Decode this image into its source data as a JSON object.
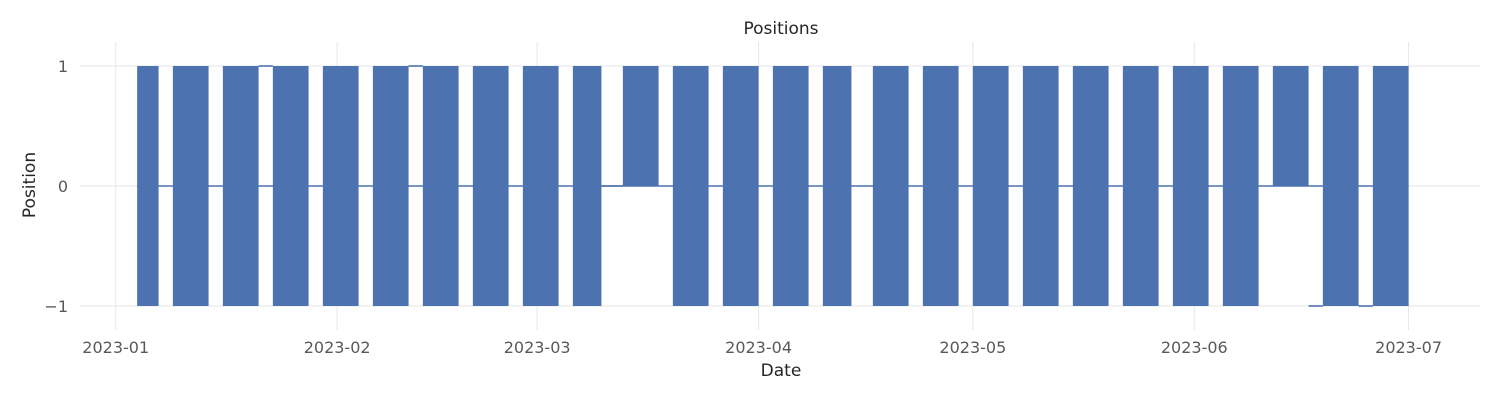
{
  "chart_data": {
    "type": "line",
    "title": "Positions",
    "xlabel": "Date",
    "ylabel": "Position",
    "grid": true,
    "legend": "none",
    "colors": {
      "series": "#4c72b0",
      "grid": "#e6e6e6",
      "text": "#262626",
      "tick": "#595959"
    },
    "xlim": [
      "2022-12-27",
      "2023-07-11"
    ],
    "ylim": [
      -1.2,
      1.2
    ],
    "x_ticks": [
      {
        "value": "2023-01-01",
        "label": "2023-01"
      },
      {
        "value": "2023-02-01",
        "label": "2023-02"
      },
      {
        "value": "2023-03-01",
        "label": "2023-03"
      },
      {
        "value": "2023-04-01",
        "label": "2023-04"
      },
      {
        "value": "2023-05-01",
        "label": "2023-05"
      },
      {
        "value": "2023-06-01",
        "label": "2023-06"
      },
      {
        "value": "2023-07-01",
        "label": "2023-07"
      }
    ],
    "y_ticks": [
      {
        "value": 1,
        "label": "1"
      },
      {
        "value": 0,
        "label": "0"
      },
      {
        "value": -1,
        "label": "−1"
      }
    ],
    "series": [
      {
        "oscillation_periods": [
          {
            "start": "2023-01-04",
            "end": "2023-01-07",
            "low": -1,
            "high": 1
          },
          {
            "start": "2023-01-09",
            "end": "2023-01-14",
            "low": -1,
            "high": 1
          },
          {
            "start": "2023-01-16",
            "end": "2023-01-21",
            "low": -1,
            "high": 1
          },
          {
            "start": "2023-01-23",
            "end": "2023-01-28",
            "low": -1,
            "high": 1
          },
          {
            "start": "2023-01-30",
            "end": "2023-02-04",
            "low": -1,
            "high": 1
          },
          {
            "start": "2023-02-06",
            "end": "2023-02-11",
            "low": -1,
            "high": 1
          },
          {
            "start": "2023-02-13",
            "end": "2023-02-18",
            "low": -1,
            "high": 1
          },
          {
            "start": "2023-02-20",
            "end": "2023-02-25",
            "low": -1,
            "high": 1
          },
          {
            "start": "2023-02-27",
            "end": "2023-03-04",
            "low": -1,
            "high": 1
          },
          {
            "start": "2023-03-06",
            "end": "2023-03-10",
            "low": -1,
            "high": 1
          },
          {
            "start": "2023-03-13",
            "end": "2023-03-18",
            "low": 0,
            "high": 1
          },
          {
            "start": "2023-03-20",
            "end": "2023-03-25",
            "low": -1,
            "high": 1
          },
          {
            "start": "2023-03-27",
            "end": "2023-04-01",
            "low": -1,
            "high": 1
          },
          {
            "start": "2023-04-03",
            "end": "2023-04-08",
            "low": -1,
            "high": 1
          },
          {
            "start": "2023-04-10",
            "end": "2023-04-14",
            "low": -1,
            "high": 1
          },
          {
            "start": "2023-04-17",
            "end": "2023-04-22",
            "low": -1,
            "high": 1
          },
          {
            "start": "2023-04-24",
            "end": "2023-04-29",
            "low": -1,
            "high": 1
          },
          {
            "start": "2023-05-01",
            "end": "2023-05-06",
            "low": -1,
            "high": 1
          },
          {
            "start": "2023-05-08",
            "end": "2023-05-13",
            "low": -1,
            "high": 1
          },
          {
            "start": "2023-05-15",
            "end": "2023-05-20",
            "low": -1,
            "high": 1
          },
          {
            "start": "2023-05-22",
            "end": "2023-05-27",
            "low": -1,
            "high": 1
          },
          {
            "start": "2023-05-29",
            "end": "2023-06-03",
            "low": -1,
            "high": 1
          },
          {
            "start": "2023-06-05",
            "end": "2023-06-10",
            "low": -1,
            "high": 1
          },
          {
            "start": "2023-06-12",
            "end": "2023-06-17",
            "low": 0,
            "high": 1
          },
          {
            "start": "2023-06-19",
            "end": "2023-06-24",
            "low": -1,
            "high": 1
          },
          {
            "start": "2023-06-26",
            "end": "2023-07-01",
            "low": -1,
            "high": 1
          }
        ],
        "steps": [
          {
            "start": "2023-01-21",
            "end": "2023-01-23",
            "value": 1
          },
          {
            "start": "2023-02-11",
            "end": "2023-02-13",
            "value": 1
          },
          {
            "start": "2023-03-10",
            "end": "2023-03-13",
            "value": 0
          },
          {
            "start": "2023-06-17",
            "end": "2023-06-19",
            "value": -1
          },
          {
            "start": "2023-06-24",
            "end": "2023-06-26",
            "value": -1
          }
        ]
      }
    ]
  }
}
